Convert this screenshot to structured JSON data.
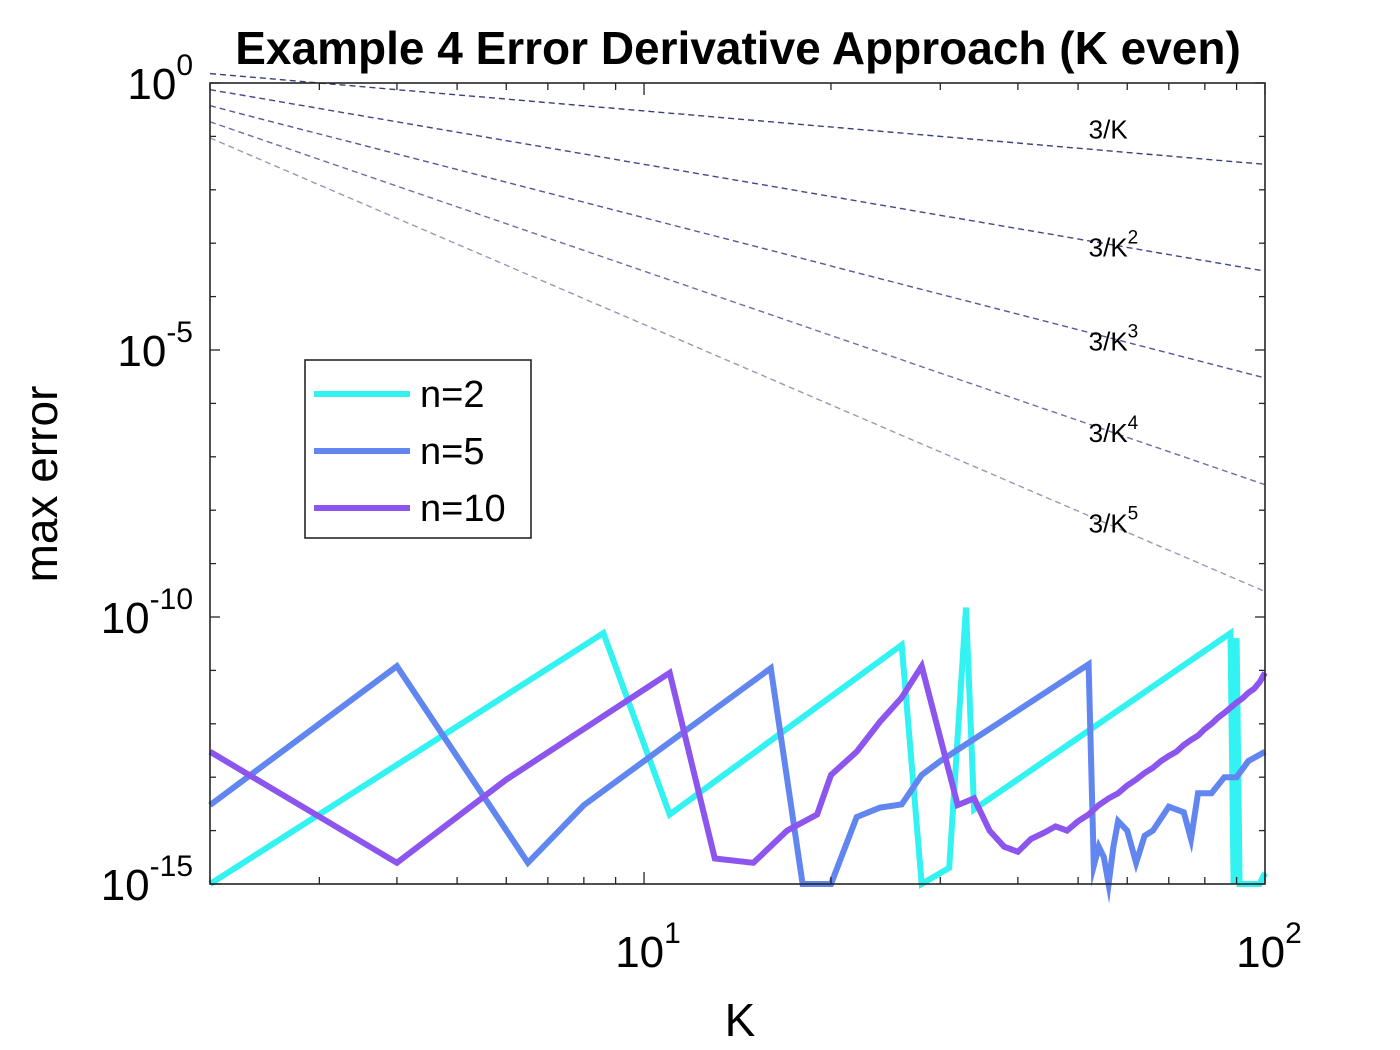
{
  "chart_data": {
    "type": "line",
    "title": "Example 4 Error Derivative Approach (K even)",
    "xlabel": "K",
    "ylabel": "max error",
    "xscale": "log",
    "yscale": "log",
    "xlim": [
      2,
      100
    ],
    "ylim": [
      1e-15,
      1
    ],
    "grid": false,
    "legend_position": "middle-left",
    "x_ticks": [
      {
        "value": 10,
        "base": "10",
        "exp": "1"
      },
      {
        "value": 100,
        "base": "10",
        "exp": "2"
      }
    ],
    "y_ticks": [
      {
        "value": 1,
        "base": "10",
        "exp": "0"
      },
      {
        "value": 1e-05,
        "base": "10",
        "exp": "-5"
      },
      {
        "value": 1e-10,
        "base": "10",
        "exp": "-10"
      },
      {
        "value": 1e-15,
        "base": "10",
        "exp": "-15"
      }
    ],
    "reference_lines": [
      {
        "label_base": "3/K",
        "label_exp": "",
        "power": 1,
        "coef": 3,
        "color": "#3b3f7a",
        "label_x": 52,
        "label_y": 0.092
      },
      {
        "label_base": "3/K",
        "label_exp": "2",
        "power": 2,
        "coef": 3,
        "color": "#45478a",
        "label_x": 52,
        "label_y": 0.00056
      },
      {
        "label_base": "3/K",
        "label_exp": "3",
        "power": 3,
        "coef": 3,
        "color": "#58569a",
        "label_x": 52,
        "label_y": 9.8e-06
      },
      {
        "label_base": "3/K",
        "label_exp": "4",
        "power": 4,
        "coef": 3,
        "color": "#6f6ea8",
        "label_x": 52,
        "label_y": 1.9e-07
      },
      {
        "label_base": "3/K",
        "label_exp": "5",
        "power": 5,
        "coef": 3,
        "color": "#9a99b5",
        "label_x": 52,
        "label_y": 3.8e-09
      }
    ],
    "series": [
      {
        "name": "n=2",
        "color": "#33f2f2",
        "x": [
          2,
          8.6,
          11,
          26,
          28,
          31,
          33,
          34,
          88,
          89,
          90,
          91,
          92,
          98,
          100
        ],
        "y": [
          1e-15,
          5e-11,
          2e-14,
          3e-11,
          1e-15,
          2e-15,
          1.5e-10,
          2.5e-14,
          5e-11,
          1e-15,
          4e-11,
          1e-15,
          1e-15,
          1e-15,
          1.6e-15
        ]
      },
      {
        "name": "n=5",
        "color": "#6186f0",
        "x": [
          2,
          4,
          6.5,
          8,
          16,
          18,
          20,
          22,
          24,
          26,
          28,
          30,
          52,
          53,
          54,
          55,
          56,
          57,
          58,
          60,
          62,
          64,
          66,
          70,
          74,
          76,
          78,
          82,
          86,
          90,
          94,
          100
        ],
        "y": [
          3e-14,
          1.2e-11,
          2.5e-15,
          3e-14,
          1.1e-11,
          1e-15,
          1e-15,
          1.8e-14,
          2.7e-14,
          3.1e-14,
          1.1e-13,
          2e-13,
          1.3e-11,
          2.2e-15,
          5e-15,
          3.2e-15,
          1e-15,
          5e-15,
          1.5e-14,
          1e-14,
          2.5e-15,
          8e-15,
          1e-14,
          2.8e-14,
          2.2e-14,
          7e-15,
          5e-14,
          5e-14,
          1e-13,
          1e-13,
          2e-13,
          3e-13
        ]
      },
      {
        "name": "n=10",
        "color": "#8c55ee",
        "x": [
          2,
          4,
          6,
          11,
          13,
          15,
          17,
          19,
          20,
          22,
          24,
          26,
          28,
          32,
          34,
          36,
          38,
          40,
          42,
          44,
          46,
          48,
          50,
          52,
          54,
          56,
          58,
          60,
          62,
          64,
          66,
          68,
          70,
          72,
          74,
          76,
          78,
          80,
          82,
          84,
          86,
          88,
          90,
          92,
          94,
          96,
          98,
          100
        ],
        "y": [
          3e-13,
          2.5e-15,
          9e-14,
          9e-12,
          3e-15,
          2.5e-15,
          1e-14,
          2e-14,
          1.1e-13,
          3e-13,
          1.1e-12,
          3.1e-12,
          1.2e-11,
          3e-14,
          4e-14,
          1e-14,
          5e-15,
          4e-15,
          7e-15,
          9e-15,
          1.2e-14,
          1e-14,
          1.5e-14,
          2e-14,
          3e-14,
          4e-14,
          5e-14,
          7e-14,
          9e-14,
          1.2e-13,
          1.5e-13,
          2e-13,
          2.5e-13,
          3e-13,
          4e-13,
          5e-13,
          6e-13,
          8e-13,
          1e-12,
          1.3e-12,
          1.6e-12,
          2e-12,
          2.5e-12,
          3e-12,
          3.8e-12,
          4.5e-12,
          6e-12,
          9e-12
        ]
      }
    ]
  }
}
